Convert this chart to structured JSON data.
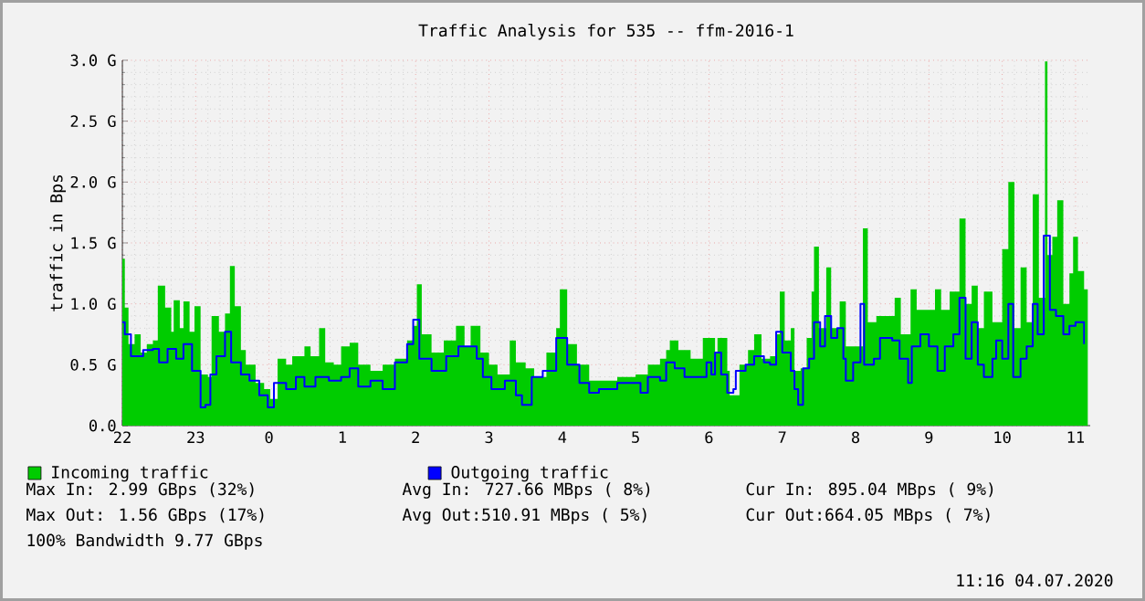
{
  "chart_data": {
    "type": "area",
    "title": "Traffic Analysis for 535 -- ffm-2016-1",
    "ylabel": "traffic in Bps",
    "xlim": [
      "2020-07-03T22:00",
      "2020-07-04T11:12"
    ],
    "ylim": [
      0,
      3.0
    ],
    "xticks": [
      {
        "value": "2020-07-03T22:00",
        "label": "22"
      },
      {
        "value": "2020-07-03T23:00",
        "label": "23"
      },
      {
        "value": "2020-07-04T00:00",
        "label": "0"
      },
      {
        "value": "2020-07-04T01:00",
        "label": "1"
      },
      {
        "value": "2020-07-04T02:00",
        "label": "2"
      },
      {
        "value": "2020-07-04T03:00",
        "label": "3"
      },
      {
        "value": "2020-07-04T04:00",
        "label": "4"
      },
      {
        "value": "2020-07-04T05:00",
        "label": "5"
      },
      {
        "value": "2020-07-04T06:00",
        "label": "6"
      },
      {
        "value": "2020-07-04T07:00",
        "label": "7"
      },
      {
        "value": "2020-07-04T08:00",
        "label": "8"
      },
      {
        "value": "2020-07-04T09:00",
        "label": "9"
      },
      {
        "value": "2020-07-04T10:00",
        "label": "10"
      },
      {
        "value": "2020-07-04T11:00",
        "label": "11"
      }
    ],
    "yticks": [
      {
        "value": 0,
        "label": "0.0"
      },
      {
        "value": 0.5,
        "label": "0.5 G"
      },
      {
        "value": 1.0,
        "label": "1.0 G"
      },
      {
        "value": 1.5,
        "label": "1.5 G"
      },
      {
        "value": 2.0,
        "label": "2.0 G"
      },
      {
        "value": 2.5,
        "label": "2.5 G"
      },
      {
        "value": 3.0,
        "label": "3.0 G"
      }
    ],
    "grid": true,
    "legend": "bottom",
    "series": [
      {
        "name": "Incoming traffic",
        "color": "#00cc00",
        "x": [
          "2020-07-03T22:00",
          "2020-07-03T22:02",
          "2020-07-03T22:05",
          "2020-07-03T22:10",
          "2020-07-03T22:15",
          "2020-07-03T22:20",
          "2020-07-03T22:25",
          "2020-07-03T22:29",
          "2020-07-03T22:35",
          "2020-07-03T22:40",
          "2020-07-03T22:42",
          "2020-07-03T22:47",
          "2020-07-03T22:50",
          "2020-07-03T22:55",
          "2020-07-03T22:59",
          "2020-07-03T23:04",
          "2020-07-03T23:10",
          "2020-07-03T23:13",
          "2020-07-03T23:19",
          "2020-07-03T23:24",
          "2020-07-03T23:28",
          "2020-07-03T23:32",
          "2020-07-03T23:37",
          "2020-07-03T23:41",
          "2020-07-03T23:49",
          "2020-07-03T23:56",
          "2020-07-04T00:01",
          "2020-07-04T00:07",
          "2020-07-04T00:14",
          "2020-07-04T00:19",
          "2020-07-04T00:29",
          "2020-07-04T00:34",
          "2020-07-04T00:41",
          "2020-07-04T00:46",
          "2020-07-04T00:53",
          "2020-07-04T00:59",
          "2020-07-04T01:06",
          "2020-07-04T01:13",
          "2020-07-04T01:23",
          "2020-07-04T01:33",
          "2020-07-04T01:43",
          "2020-07-04T01:53",
          "2020-07-04T01:58",
          "2020-07-04T02:01",
          "2020-07-04T02:05",
          "2020-07-04T02:13",
          "2020-07-04T02:23",
          "2020-07-04T02:33",
          "2020-07-04T02:40",
          "2020-07-04T02:45",
          "2020-07-04T02:53",
          "2020-07-04T03:00",
          "2020-07-04T03:07",
          "2020-07-04T03:17",
          "2020-07-04T03:22",
          "2020-07-04T03:30",
          "2020-07-04T03:37",
          "2020-07-04T03:47",
          "2020-07-04T03:55",
          "2020-07-04T03:58",
          "2020-07-04T04:04",
          "2020-07-04T04:12",
          "2020-07-04T04:22",
          "2020-07-04T04:30",
          "2020-07-04T04:45",
          "2020-07-04T05:00",
          "2020-07-04T05:10",
          "2020-07-04T05:20",
          "2020-07-04T05:25",
          "2020-07-04T05:28",
          "2020-07-04T05:35",
          "2020-07-04T05:45",
          "2020-07-04T05:55",
          "2020-07-04T06:05",
          "2020-07-04T06:07",
          "2020-07-04T06:15",
          "2020-07-04T06:17",
          "2020-07-04T06:25",
          "2020-07-04T06:32",
          "2020-07-04T06:37",
          "2020-07-04T06:43",
          "2020-07-04T06:50",
          "2020-07-04T06:55",
          "2020-07-04T06:58",
          "2020-07-04T07:02",
          "2020-07-04T07:07",
          "2020-07-04T07:10",
          "2020-07-04T07:15",
          "2020-07-04T07:20",
          "2020-07-04T07:24",
          "2020-07-04T07:26",
          "2020-07-04T07:30",
          "2020-07-04T07:36",
          "2020-07-04T07:40",
          "2020-07-04T07:47",
          "2020-07-04T07:52",
          "2020-07-04T08:00",
          "2020-07-04T08:06",
          "2020-07-04T08:10",
          "2020-07-04T08:17",
          "2020-07-04T08:25",
          "2020-07-04T08:32",
          "2020-07-04T08:37",
          "2020-07-04T08:45",
          "2020-07-04T08:50",
          "2020-07-04T08:58",
          "2020-07-04T09:05",
          "2020-07-04T09:10",
          "2020-07-04T09:17",
          "2020-07-04T09:25",
          "2020-07-04T09:30",
          "2020-07-04T09:35",
          "2020-07-04T09:40",
          "2020-07-04T09:45",
          "2020-07-04T09:52",
          "2020-07-04T10:00",
          "2020-07-04T10:05",
          "2020-07-04T10:10",
          "2020-07-04T10:15",
          "2020-07-04T10:20",
          "2020-07-04T10:25",
          "2020-07-04T10:30",
          "2020-07-04T10:35",
          "2020-07-04T10:37",
          "2020-07-04T10:41",
          "2020-07-04T10:45",
          "2020-07-04T10:50",
          "2020-07-04T10:55",
          "2020-07-04T10:58",
          "2020-07-04T11:02",
          "2020-07-04T11:07",
          "2020-07-04T11:10"
        ],
        "values": [
          1.37,
          0.97,
          0.67,
          0.75,
          0.6,
          0.67,
          0.7,
          1.15,
          0.97,
          0.77,
          1.03,
          0.8,
          1.02,
          0.77,
          0.98,
          0.42,
          0.4,
          0.9,
          0.77,
          0.92,
          1.31,
          0.98,
          0.62,
          0.5,
          0.35,
          0.3,
          0.22,
          0.55,
          0.5,
          0.57,
          0.65,
          0.57,
          0.8,
          0.52,
          0.5,
          0.65,
          0.68,
          0.5,
          0.45,
          0.5,
          0.55,
          0.7,
          0.82,
          1.16,
          0.75,
          0.6,
          0.7,
          0.82,
          0.65,
          0.82,
          0.6,
          0.5,
          0.42,
          0.7,
          0.52,
          0.47,
          0.4,
          0.6,
          0.8,
          1.12,
          0.67,
          0.5,
          0.37,
          0.37,
          0.4,
          0.42,
          0.5,
          0.55,
          0.62,
          0.7,
          0.62,
          0.55,
          0.72,
          0.6,
          0.72,
          0.45,
          0.25,
          0.5,
          0.62,
          0.75,
          0.55,
          0.57,
          0.75,
          1.1,
          0.7,
          0.8,
          0.45,
          0.47,
          0.72,
          1.1,
          1.47,
          0.8,
          1.3,
          0.8,
          1.02,
          0.65,
          0.65,
          1.62,
          0.85,
          0.9,
          0.9,
          1.05,
          0.75,
          1.12,
          0.95,
          0.95,
          1.12,
          0.95,
          1.1,
          1.7,
          1.0,
          1.15,
          0.8,
          1.1,
          0.85,
          1.45,
          2.0,
          0.8,
          1.3,
          0.85,
          1.9,
          1.05,
          2.99,
          1.4,
          1.55,
          1.85,
          1.0,
          1.25,
          1.55,
          1.27,
          1.12,
          1.12
        ]
      },
      {
        "name": "Outgoing traffic",
        "type": "step",
        "color": "#0000ff",
        "x": [
          "2020-07-03T22:00",
          "2020-07-03T22:02",
          "2020-07-03T22:07",
          "2020-07-03T22:13",
          "2020-07-03T22:17",
          "2020-07-03T22:25",
          "2020-07-03T22:30",
          "2020-07-03T22:37",
          "2020-07-03T22:44",
          "2020-07-03T22:50",
          "2020-07-03T22:57",
          "2020-07-03T23:04",
          "2020-07-03T23:08",
          "2020-07-03T23:12",
          "2020-07-03T23:17",
          "2020-07-03T23:24",
          "2020-07-03T23:29",
          "2020-07-03T23:37",
          "2020-07-03T23:44",
          "2020-07-03T23:52",
          "2020-07-03T23:59",
          "2020-07-04T00:04",
          "2020-07-04T00:14",
          "2020-07-04T00:22",
          "2020-07-04T00:29",
          "2020-07-04T00:38",
          "2020-07-04T00:49",
          "2020-07-04T00:59",
          "2020-07-04T01:06",
          "2020-07-04T01:13",
          "2020-07-04T01:23",
          "2020-07-04T01:33",
          "2020-07-04T01:43",
          "2020-07-04T01:53",
          "2020-07-04T01:58",
          "2020-07-04T02:03",
          "2020-07-04T02:13",
          "2020-07-04T02:25",
          "2020-07-04T02:35",
          "2020-07-04T02:43",
          "2020-07-04T02:50",
          "2020-07-04T02:55",
          "2020-07-04T03:02",
          "2020-07-04T03:13",
          "2020-07-04T03:22",
          "2020-07-04T03:27",
          "2020-07-04T03:35",
          "2020-07-04T03:44",
          "2020-07-04T03:55",
          "2020-07-04T04:04",
          "2020-07-04T04:14",
          "2020-07-04T04:22",
          "2020-07-04T04:30",
          "2020-07-04T04:45",
          "2020-07-04T05:00",
          "2020-07-04T05:04",
          "2020-07-04T05:10",
          "2020-07-04T05:20",
          "2020-07-04T05:25",
          "2020-07-04T05:32",
          "2020-07-04T05:40",
          "2020-07-04T05:50",
          "2020-07-04T05:58",
          "2020-07-04T06:02",
          "2020-07-04T06:05",
          "2020-07-04T06:10",
          "2020-07-04T06:15",
          "2020-07-04T06:20",
          "2020-07-04T06:22",
          "2020-07-04T06:30",
          "2020-07-04T06:37",
          "2020-07-04T06:45",
          "2020-07-04T06:50",
          "2020-07-04T06:55",
          "2020-07-04T07:00",
          "2020-07-04T07:07",
          "2020-07-04T07:10",
          "2020-07-04T07:13",
          "2020-07-04T07:17",
          "2020-07-04T07:22",
          "2020-07-04T07:26",
          "2020-07-04T07:31",
          "2020-07-04T07:35",
          "2020-07-04T07:40",
          "2020-07-04T07:45",
          "2020-07-04T07:50",
          "2020-07-04T07:52",
          "2020-07-04T07:58",
          "2020-07-04T08:04",
          "2020-07-04T08:07",
          "2020-07-04T08:15",
          "2020-07-04T08:20",
          "2020-07-04T08:30",
          "2020-07-04T08:36",
          "2020-07-04T08:43",
          "2020-07-04T08:46",
          "2020-07-04T08:53",
          "2020-07-04T09:00",
          "2020-07-04T09:07",
          "2020-07-04T09:13",
          "2020-07-04T09:20",
          "2020-07-04T09:25",
          "2020-07-04T09:30",
          "2020-07-04T09:35",
          "2020-07-04T09:40",
          "2020-07-04T09:45",
          "2020-07-04T09:52",
          "2020-07-04T09:55",
          "2020-07-04T10:00",
          "2020-07-04T10:05",
          "2020-07-04T10:09",
          "2020-07-04T10:15",
          "2020-07-04T10:20",
          "2020-07-04T10:25",
          "2020-07-04T10:29",
          "2020-07-04T10:34",
          "2020-07-04T10:39",
          "2020-07-04T10:44",
          "2020-07-04T10:50",
          "2020-07-04T10:55",
          "2020-07-04T11:00",
          "2020-07-04T11:07"
        ],
        "values": [
          0.85,
          0.75,
          0.57,
          0.57,
          0.62,
          0.63,
          0.52,
          0.63,
          0.55,
          0.67,
          0.45,
          0.15,
          0.17,
          0.42,
          0.57,
          0.77,
          0.52,
          0.42,
          0.37,
          0.25,
          0.15,
          0.35,
          0.3,
          0.4,
          0.32,
          0.4,
          0.37,
          0.4,
          0.47,
          0.32,
          0.37,
          0.3,
          0.52,
          0.67,
          0.87,
          0.55,
          0.45,
          0.57,
          0.65,
          0.65,
          0.55,
          0.4,
          0.3,
          0.37,
          0.25,
          0.17,
          0.4,
          0.45,
          0.72,
          0.5,
          0.35,
          0.27,
          0.3,
          0.35,
          0.35,
          0.27,
          0.4,
          0.37,
          0.52,
          0.47,
          0.4,
          0.4,
          0.52,
          0.42,
          0.6,
          0.42,
          0.27,
          0.3,
          0.45,
          0.5,
          0.57,
          0.52,
          0.5,
          0.77,
          0.6,
          0.45,
          0.3,
          0.17,
          0.47,
          0.55,
          0.85,
          0.65,
          0.9,
          0.72,
          0.8,
          0.55,
          0.37,
          0.52,
          1.0,
          0.5,
          0.55,
          0.72,
          0.7,
          0.55,
          0.35,
          0.65,
          0.75,
          0.65,
          0.45,
          0.65,
          0.75,
          1.05,
          0.55,
          0.85,
          0.5,
          0.4,
          0.55,
          0.7,
          0.55,
          1.0,
          0.4,
          0.55,
          0.65,
          1.0,
          0.75,
          1.56,
          0.95,
          0.9,
          0.75,
          0.82,
          0.85,
          0.67
        ]
      }
    ],
    "annotations": [
      "Max In: 2.99 GBps (32%)",
      "Avg In: 727.66 MBps ( 8%)",
      "Cur In: 895.04 MBps ( 9%)",
      "Max Out: 1.56 GBps (17%)",
      "Avg Out:510.91 MBps ( 5%)",
      "Cur Out:664.05 MBps ( 7%)",
      "100% Bandwidth 9.77 GBps",
      "11:16 04.07.2020"
    ]
  }
}
